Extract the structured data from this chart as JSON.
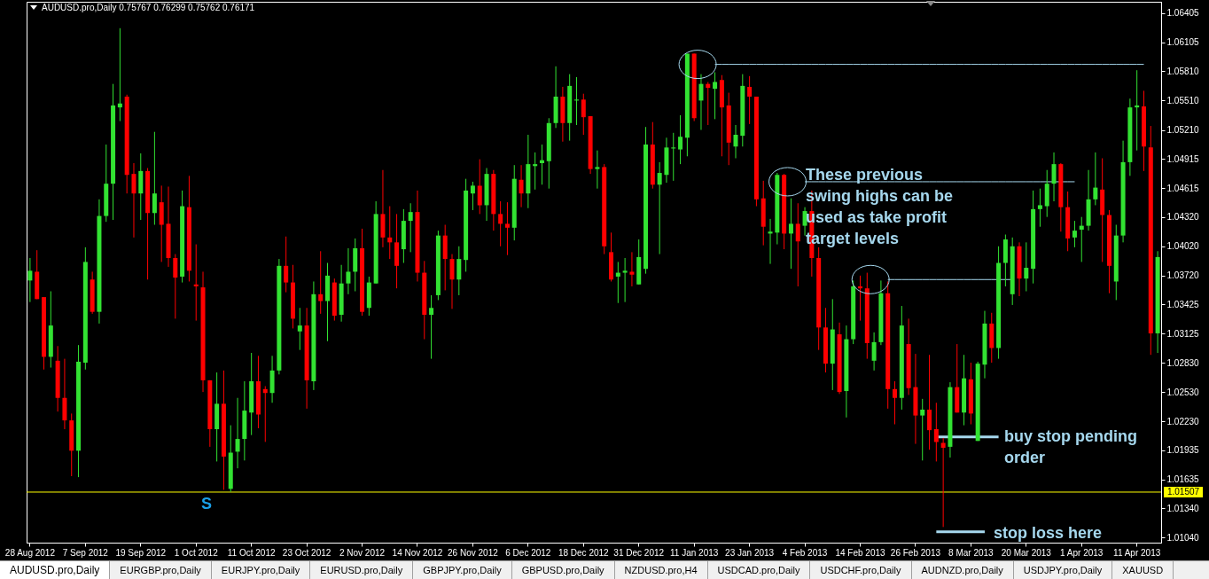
{
  "chart_data": {
    "type": "candlestick",
    "title": "AUDUSD.pro,Daily 0.75767 0.76299 0.75762 0.76171",
    "categories": [
      "28 Aug 2012",
      null,
      null,
      null,
      null,
      null,
      null,
      null,
      "7 Sep 2012",
      null,
      null,
      null,
      null,
      null,
      null,
      null,
      "19 Sep 2012",
      null,
      null,
      null,
      null,
      null,
      null,
      null,
      "1 Oct 2012",
      null,
      null,
      null,
      null,
      null,
      null,
      null,
      "11 Oct 2012",
      null,
      null,
      null,
      null,
      null,
      null,
      null,
      "23 Oct 2012",
      null,
      null,
      null,
      null,
      null,
      null,
      null,
      "2 Nov 2012",
      null,
      null,
      null,
      null,
      null,
      null,
      null,
      "14 Nov 2012",
      null,
      null,
      null,
      null,
      null,
      null,
      null,
      "26 Nov 2012",
      null,
      null,
      null,
      null,
      null,
      null,
      null,
      "6 Dec 2012",
      null,
      null,
      null,
      null,
      null,
      null,
      null,
      "18 Dec 2012",
      null,
      null,
      null,
      null,
      null,
      null,
      null,
      "31 Dec 2012",
      null,
      null,
      null,
      null,
      null,
      null,
      null,
      "11 Jan 2013",
      null,
      null,
      null,
      null,
      null,
      null,
      null,
      "23 Jan 2013",
      null,
      null,
      null,
      null,
      null,
      null,
      null,
      "4 Feb 2013",
      null,
      null,
      null,
      null,
      null,
      null,
      null,
      "14 Feb 2013",
      null,
      null,
      null,
      null,
      null,
      null,
      null,
      "26 Feb 2013",
      null,
      null,
      null,
      null,
      null,
      null,
      null,
      "8 Mar 2013",
      null,
      null,
      null,
      null,
      null,
      null,
      null,
      "20 Mar 2013",
      null,
      null,
      null,
      null,
      null,
      null,
      null,
      "1 Apr 2013",
      null,
      null,
      null,
      null,
      null,
      null,
      null,
      "11 Apr 2013",
      null,
      null,
      null
    ],
    "ohlc": [
      [
        1.0367,
        1.039,
        1.0345,
        1.0377
      ],
      [
        1.0376,
        1.0398,
        1.0348,
        1.0348
      ],
      [
        1.035,
        1.035,
        1.0276,
        1.0289
      ],
      [
        1.0289,
        1.0356,
        1.0278,
        1.0321
      ],
      [
        1.0285,
        1.03,
        1.0233,
        1.0247
      ],
      [
        1.0247,
        1.0287,
        1.0215,
        1.0224
      ],
      [
        1.0224,
        1.0231,
        1.0167,
        1.0193
      ],
      [
        1.0193,
        1.0301,
        1.0166,
        1.0284
      ],
      [
        1.0283,
        1.0401,
        1.0276,
        1.0386
      ],
      [
        1.0368,
        1.0376,
        1.0333,
        1.0335
      ],
      [
        1.0335,
        1.045,
        1.0323,
        1.0433
      ],
      [
        1.0433,
        1.0506,
        1.0427,
        1.0466
      ],
      [
        1.0466,
        1.0568,
        1.0429,
        1.0546
      ],
      [
        1.0544,
        1.0625,
        1.053,
        1.0548
      ],
      [
        1.0555,
        1.0557,
        1.0456,
        1.0475
      ],
      [
        1.0476,
        1.0487,
        1.0411,
        1.0456
      ],
      [
        1.0456,
        1.0497,
        1.0429,
        1.0479
      ],
      [
        1.0479,
        1.0482,
        1.0368,
        1.0436
      ],
      [
        1.0436,
        1.0519,
        1.0424,
        1.0456
      ],
      [
        1.0447,
        1.0464,
        1.0386,
        1.0424
      ],
      [
        1.0425,
        1.0463,
        1.0381,
        1.039
      ],
      [
        1.039,
        1.0394,
        1.0328,
        1.037
      ],
      [
        1.0371,
        1.0459,
        1.0365,
        1.0443
      ],
      [
        1.0442,
        1.0474,
        1.0366,
        1.0377
      ],
      [
        1.0363,
        1.0404,
        1.0326,
        1.0361
      ],
      [
        1.036,
        1.0376,
        1.0253,
        1.0265
      ],
      [
        1.0265,
        1.0265,
        1.0197,
        1.0215
      ],
      [
        1.0215,
        1.0273,
        1.0182,
        1.0241
      ],
      [
        1.0241,
        1.0275,
        1.0153,
        1.0187
      ],
      [
        1.0154,
        1.0219,
        1.0151,
        1.0191
      ],
      [
        1.0192,
        1.0247,
        1.0175,
        1.0205
      ],
      [
        1.0205,
        1.0264,
        1.0183,
        1.0234
      ],
      [
        1.0232,
        1.0293,
        1.0209,
        1.0264
      ],
      [
        1.0264,
        1.029,
        1.0216,
        1.023
      ],
      [
        1.0256,
        1.0259,
        1.0202,
        1.0252
      ],
      [
        1.0252,
        1.029,
        1.0242,
        1.0275
      ],
      [
        1.0275,
        1.0389,
        1.0271,
        1.0382
      ],
      [
        1.0382,
        1.0412,
        1.0355,
        1.0365
      ],
      [
        1.0365,
        1.0383,
        1.0318,
        1.0328
      ],
      [
        1.0315,
        1.0339,
        1.0296,
        1.0321
      ],
      [
        1.0321,
        1.0339,
        1.0236,
        1.0265
      ],
      [
        1.0264,
        1.0366,
        1.0255,
        1.0353
      ],
      [
        1.0353,
        1.0397,
        1.0333,
        1.0346
      ],
      [
        1.0346,
        1.0385,
        1.0305,
        1.0372
      ],
      [
        1.0365,
        1.0369,
        1.0326,
        1.0331
      ],
      [
        1.0332,
        1.0383,
        1.0325,
        1.0364
      ],
      [
        1.0364,
        1.04,
        1.0353,
        1.0376
      ],
      [
        1.0376,
        1.041,
        1.0356,
        1.04
      ],
      [
        1.04,
        1.042,
        1.0331,
        1.0335
      ],
      [
        1.0339,
        1.0371,
        1.0331,
        1.0365
      ],
      [
        1.0364,
        1.0448,
        1.0364,
        1.0435
      ],
      [
        1.0435,
        1.048,
        1.0401,
        1.0411
      ],
      [
        1.0411,
        1.0443,
        1.0389,
        1.0406
      ],
      [
        1.0406,
        1.0435,
        1.0359,
        1.0382
      ],
      [
        1.0399,
        1.044,
        1.0385,
        1.0428
      ],
      [
        1.0428,
        1.0446,
        1.0396,
        1.0437
      ],
      [
        1.0437,
        1.0459,
        1.0366,
        1.0375
      ],
      [
        1.0375,
        1.0387,
        1.0307,
        1.0332
      ],
      [
        1.0332,
        1.0352,
        1.0287,
        1.0339
      ],
      [
        1.0352,
        1.0418,
        1.0347,
        1.0413
      ],
      [
        1.0413,
        1.0424,
        1.0357,
        1.0389
      ],
      [
        1.0389,
        1.0394,
        1.0338,
        1.0368
      ],
      [
        1.0368,
        1.0402,
        1.0352,
        1.0389
      ],
      [
        1.0388,
        1.0471,
        1.0376,
        1.0459
      ],
      [
        1.0456,
        1.0468,
        1.0439,
        1.0464
      ],
      [
        1.0464,
        1.0491,
        1.0435,
        1.0444
      ],
      [
        1.0444,
        1.0482,
        1.0428,
        1.0476
      ],
      [
        1.0476,
        1.048,
        1.0418,
        1.0435
      ],
      [
        1.0435,
        1.0448,
        1.0402,
        1.0425
      ],
      [
        1.0425,
        1.0447,
        1.0393,
        1.0421
      ],
      [
        1.0421,
        1.0485,
        1.0408,
        1.0471
      ],
      [
        1.047,
        1.0485,
        1.0442,
        1.0456
      ],
      [
        1.0456,
        1.0516,
        1.0441,
        1.0486
      ],
      [
        1.0484,
        1.0498,
        1.046,
        1.0486
      ],
      [
        1.0487,
        1.0506,
        1.0465,
        1.049
      ],
      [
        1.0489,
        1.0533,
        1.0461,
        1.0528
      ],
      [
        1.0528,
        1.0586,
        1.0523,
        1.0555
      ],
      [
        1.0555,
        1.0565,
        1.0509,
        1.0528
      ],
      [
        1.0528,
        1.0578,
        1.051,
        1.0566
      ],
      [
        1.0551,
        1.0575,
        1.0526,
        1.0552
      ],
      [
        1.0552,
        1.0558,
        1.0516,
        1.0534
      ],
      [
        1.0535,
        1.0535,
        1.0476,
        1.0481
      ],
      [
        1.0481,
        1.05,
        1.0461,
        1.0483
      ],
      [
        1.0483,
        1.0486,
        1.0394,
        1.0402
      ],
      [
        1.0396,
        1.0416,
        1.0366,
        1.0368
      ],
      [
        1.0371,
        1.0386,
        1.0344,
        1.0375
      ],
      [
        1.0375,
        1.039,
        1.0345,
        1.0377
      ],
      [
        1.0376,
        1.0396,
        1.0361,
        1.0373
      ],
      [
        1.0363,
        1.0409,
        1.0363,
        1.0391
      ],
      [
        1.0379,
        1.0524,
        1.0374,
        1.0506
      ],
      [
        1.0506,
        1.0529,
        1.0461,
        1.0465
      ],
      [
        1.0465,
        1.0488,
        1.0394,
        1.0477
      ],
      [
        1.0475,
        1.0513,
        1.0467,
        1.0503
      ],
      [
        1.0502,
        1.0518,
        1.0469,
        1.0503
      ],
      [
        1.0501,
        1.0536,
        1.0486,
        1.0514
      ],
      [
        1.0513,
        1.0599,
        1.0494,
        1.0599
      ],
      [
        1.0599,
        1.0599,
        1.053,
        1.0533
      ],
      [
        1.0551,
        1.0578,
        1.0521,
        1.0568
      ],
      [
        1.0568,
        1.057,
        1.0526,
        1.0564
      ],
      [
        1.0563,
        1.058,
        1.0532,
        1.057
      ],
      [
        1.0572,
        1.0577,
        1.0494,
        1.0544
      ],
      [
        1.0546,
        1.0559,
        1.0485,
        1.0508
      ],
      [
        1.0504,
        1.0526,
        1.0492,
        1.0516
      ],
      [
        1.0515,
        1.0578,
        1.0504,
        1.0566
      ],
      [
        1.0565,
        1.0576,
        1.0527,
        1.0555
      ],
      [
        1.0555,
        1.0555,
        1.0443,
        1.045
      ],
      [
        1.0451,
        1.0469,
        1.0403,
        1.0422
      ],
      [
        1.0415,
        1.043,
        1.0384,
        1.0417
      ],
      [
        1.0416,
        1.0477,
        1.0404,
        1.0475
      ],
      [
        1.0475,
        1.0476,
        1.0399,
        1.0415
      ],
      [
        1.0415,
        1.0451,
        1.0379,
        1.0425
      ],
      [
        1.0425,
        1.0446,
        1.0361,
        1.0407
      ],
      [
        1.0423,
        1.0442,
        1.0413,
        1.0438
      ],
      [
        1.0438,
        1.0459,
        1.0371,
        1.039
      ],
      [
        1.039,
        1.0401,
        1.0296,
        1.0319
      ],
      [
        1.0319,
        1.0339,
        1.0273,
        1.0282
      ],
      [
        1.0282,
        1.0348,
        1.0255,
        1.0317
      ],
      [
        1.0312,
        1.0324,
        1.0251,
        1.0253
      ],
      [
        1.0254,
        1.0321,
        1.0227,
        1.0307
      ],
      [
        1.0307,
        1.0367,
        1.0302,
        1.0361
      ],
      [
        1.0361,
        1.0372,
        1.0326,
        1.0359
      ],
      [
        1.0359,
        1.0375,
        1.0287,
        1.0303
      ],
      [
        1.0285,
        1.0314,
        1.0275,
        1.0304
      ],
      [
        1.0304,
        1.0367,
        1.0301,
        1.0354
      ],
      [
        1.0354,
        1.0366,
        1.0236,
        1.0256
      ],
      [
        1.0256,
        1.0264,
        1.022,
        1.0247
      ],
      [
        1.0247,
        1.0341,
        1.0235,
        1.0321
      ],
      [
        1.0302,
        1.0328,
        1.025,
        1.0257
      ],
      [
        1.0258,
        1.0292,
        1.02,
        1.0229
      ],
      [
        1.0229,
        1.0246,
        1.0183,
        1.0235
      ],
      [
        1.0235,
        1.0291,
        1.0194,
        1.0214
      ],
      [
        1.0215,
        1.0242,
        1.0182,
        1.0202
      ],
      [
        1.0201,
        1.0206,
        1.0115,
        1.0196
      ],
      [
        1.0197,
        1.0263,
        1.0186,
        1.0258
      ],
      [
        1.0258,
        1.0302,
        1.0232,
        1.0232
      ],
      [
        1.0232,
        1.0291,
        1.0219,
        1.0267
      ],
      [
        1.0266,
        1.0283,
        1.022,
        1.0231
      ],
      [
        1.0203,
        1.0284,
        1.0203,
        1.0282
      ],
      [
        1.0281,
        1.0336,
        1.0267,
        1.0323
      ],
      [
        1.0323,
        1.0334,
        1.0283,
        1.0298
      ],
      [
        1.0298,
        1.0402,
        1.0287,
        1.0385
      ],
      [
        1.0385,
        1.0414,
        1.0361,
        1.0409
      ],
      [
        1.0353,
        1.0411,
        1.0342,
        1.0402
      ],
      [
        1.0402,
        1.0406,
        1.0351,
        1.0369
      ],
      [
        1.0369,
        1.0406,
        1.0356,
        1.038
      ],
      [
        1.0379,
        1.0459,
        1.0364,
        1.044
      ],
      [
        1.044,
        1.0461,
        1.0422,
        1.0444
      ],
      [
        1.0443,
        1.048,
        1.0432,
        1.0466
      ],
      [
        1.0466,
        1.0498,
        1.0448,
        1.0486
      ],
      [
        1.0486,
        1.0487,
        1.0417,
        1.0442
      ],
      [
        1.0442,
        1.0458,
        1.0397,
        1.041
      ],
      [
        1.0411,
        1.0428,
        1.0401,
        1.0418
      ],
      [
        1.0419,
        1.0432,
        1.0386,
        1.0423
      ],
      [
        1.0423,
        1.048,
        1.0418,
        1.045
      ],
      [
        1.045,
        1.0498,
        1.0444,
        1.0462
      ],
      [
        1.046,
        1.0492,
        1.0386,
        1.0434
      ],
      [
        1.0434,
        1.0439,
        1.0354,
        1.0382
      ],
      [
        1.0366,
        1.0424,
        1.0347,
        1.0413
      ],
      [
        1.0413,
        1.051,
        1.0406,
        1.0488
      ],
      [
        1.0488,
        1.0553,
        1.0474,
        1.0544
      ],
      [
        1.0544,
        1.0582,
        1.05,
        1.0546
      ],
      [
        1.0545,
        1.0561,
        1.0479,
        1.0504
      ],
      [
        1.0503,
        1.0525,
        1.0291,
        1.0313
      ],
      [
        1.0313,
        1.0397,
        1.0293,
        1.0391
      ]
    ],
    "colors": [
      "#32e232",
      "#ff0000",
      "#ff0000",
      "#32e232",
      "#ff0000",
      "#ff0000",
      "#ff0000",
      "#32e232",
      "#32e232",
      "#ff0000",
      "#32e232",
      "#32e232",
      "#32e232",
      "#32e232",
      "#ff0000",
      "#ff0000",
      "#32e232",
      "#ff0000",
      "#32e232",
      "#ff0000",
      "#ff0000",
      "#ff0000",
      "#32e232",
      "#ff0000",
      "#ff0000",
      "#ff0000",
      "#ff0000",
      "#32e232",
      "#ff0000",
      "#32e232",
      "#32e232",
      "#32e232",
      "#32e232",
      "#ff0000",
      "#ff0000",
      "#32e232",
      "#32e232",
      "#ff0000",
      "#ff0000",
      "#32e232",
      "#ff0000",
      "#32e232",
      "#ff0000",
      "#32e232",
      "#ff0000",
      "#32e232",
      "#32e232",
      "#32e232",
      "#ff0000",
      "#32e232",
      "#32e232",
      "#ff0000",
      "#ff0000",
      "#ff0000",
      "#32e232",
      "#32e232",
      "#ff0000",
      "#ff0000",
      "#32e232",
      "#32e232",
      "#ff0000",
      "#ff0000",
      "#32e232",
      "#32e232",
      "#32e232",
      "#ff0000",
      "#32e232",
      "#ff0000",
      "#ff0000",
      "#ff0000",
      "#32e232",
      "#ff0000",
      "#32e232",
      "#32e232",
      "#32e232",
      "#32e232",
      "#32e232",
      "#ff0000",
      "#32e232",
      "#32e232",
      "#ff0000",
      "#ff0000",
      "#32e232",
      "#ff0000",
      "#ff0000",
      "#32e232",
      "#32e232",
      "#ff0000",
      "#32e232",
      "#32e232",
      "#ff0000",
      "#32e232",
      "#32e232",
      "#32e232",
      "#32e232",
      "#32e232",
      "#ff0000",
      "#32e232",
      "#ff0000",
      "#32e232",
      "#ff0000",
      "#ff0000",
      "#32e232",
      "#32e232",
      "#ff0000",
      "#ff0000",
      "#ff0000",
      "#32e232",
      "#32e232",
      "#ff0000",
      "#32e232",
      "#ff0000",
      "#32e232",
      "#ff0000",
      "#ff0000",
      "#ff0000",
      "#32e232",
      "#ff0000",
      "#32e232",
      "#32e232",
      "#ff0000",
      "#ff0000",
      "#32e232",
      "#32e232",
      "#ff0000",
      "#ff0000",
      "#32e232",
      "#ff0000",
      "#ff0000",
      "#32e232",
      "#ff0000",
      "#ff0000",
      "#ff0000",
      "#32e232",
      "#ff0000",
      "#32e232",
      "#ff0000",
      "#32e232",
      "#32e232",
      "#ff0000",
      "#32e232",
      "#32e232",
      "#32e232",
      "#ff0000",
      "#32e232",
      "#32e232",
      "#32e232",
      "#32e232",
      "#32e232",
      "#ff0000",
      "#ff0000",
      "#32e232",
      "#32e232",
      "#32e232",
      "#32e232",
      "#ff0000",
      "#ff0000",
      "#32e232",
      "#32e232",
      "#32e232",
      "#32e232",
      "#ff0000",
      "#ff0000",
      "#32e232"
    ],
    "series": [
      {
        "type": "line",
        "color": "#a6d8ee",
        "values": [
          null,
          null,
          null,
          null,
          null,
          null,
          null,
          null,
          null,
          null,
          null,
          null,
          null,
          null,
          null,
          null,
          null,
          null,
          null,
          null,
          null,
          null,
          null,
          null,
          null,
          null,
          null,
          null,
          null,
          null,
          null,
          null,
          null,
          null,
          null,
          null,
          null,
          null,
          null,
          null,
          null,
          null,
          null,
          null,
          null,
          null,
          null,
          null,
          null,
          null,
          null,
          null,
          null,
          null,
          null,
          null,
          null,
          null,
          null,
          null,
          null,
          null,
          null,
          null,
          null,
          null,
          null,
          null,
          null,
          null,
          null,
          null,
          null,
          null,
          null,
          null,
          null,
          null,
          null,
          null,
          null,
          null,
          null,
          null,
          null,
          null,
          null,
          null,
          null,
          null,
          null,
          null,
          null,
          null,
          null,
          null,
          null,
          null,
          null,
          1.0588,
          1.0588,
          1.0588,
          1.0588,
          1.0588,
          1.0588,
          1.0588,
          1.0588,
          1.0588,
          1.0588,
          1.0588,
          1.0588,
          1.0588,
          1.0588,
          1.0588,
          1.0588,
          1.0588,
          1.0588,
          1.0588,
          1.0588,
          1.0588,
          1.0588,
          1.0588,
          1.0588,
          1.0588,
          1.0588,
          1.0588,
          1.0588,
          1.0588,
          1.0588,
          1.0588,
          1.0588,
          1.0588,
          1.0588,
          1.0588,
          1.0588,
          1.0588,
          1.0588,
          1.0588,
          1.0588,
          1.0588,
          1.0588,
          1.0588,
          1.0588,
          1.0588,
          1.0588,
          1.0588,
          1.0588,
          1.0588,
          1.0588,
          1.0588,
          1.0588,
          1.0588,
          1.0588,
          1.0588,
          1.0588,
          1.0588,
          1.0588,
          1.0588,
          1.0588,
          1.0588,
          1.0588,
          1.0588,
          null,
          null
        ]
      },
      {
        "type": "line",
        "color": "#a6d8ee",
        "values": [
          null,
          null,
          null,
          null,
          null,
          null,
          null,
          null,
          null,
          null,
          null,
          null,
          null,
          null,
          null,
          null,
          null,
          null,
          null,
          null,
          null,
          null,
          null,
          null,
          null,
          null,
          null,
          null,
          null,
          null,
          null,
          null,
          null,
          null,
          null,
          null,
          null,
          null,
          null,
          null,
          null,
          null,
          null,
          null,
          null,
          null,
          null,
          null,
          null,
          null,
          null,
          null,
          null,
          null,
          null,
          null,
          null,
          null,
          null,
          null,
          null,
          null,
          null,
          null,
          null,
          null,
          null,
          null,
          null,
          null,
          null,
          null,
          null,
          null,
          null,
          null,
          null,
          null,
          null,
          null,
          null,
          null,
          null,
          null,
          null,
          null,
          null,
          null,
          null,
          null,
          null,
          null,
          null,
          null,
          null,
          null,
          null,
          null,
          null,
          null,
          null,
          null,
          null,
          null,
          null,
          null,
          null,
          null,
          null,
          null,
          null,
          null,
          1.0468,
          1.0468,
          1.0468,
          1.0468,
          1.0468,
          1.0468,
          1.0468,
          1.0468,
          1.0468,
          1.0468,
          1.0468,
          1.0468,
          1.0468,
          1.0468,
          1.0468,
          1.0468,
          1.0468,
          1.0468,
          1.0468,
          1.0468,
          1.0468,
          1.0468,
          1.0468,
          1.0468,
          1.0468,
          1.0468,
          1.0468,
          1.0468,
          1.0468,
          1.0468,
          1.0468,
          1.0468,
          1.0468,
          1.0468,
          1.0468,
          1.0468,
          1.0468,
          1.0468,
          1.0468,
          1.0468,
          null,
          null,
          null,
          null,
          null,
          null,
          null,
          null,
          null,
          null,
          null,
          null
        ]
      },
      {
        "type": "line",
        "color": "#a6d8ee",
        "values": [
          null,
          null,
          null,
          null,
          null,
          null,
          null,
          null,
          null,
          null,
          null,
          null,
          null,
          null,
          null,
          null,
          null,
          null,
          null,
          null,
          null,
          null,
          null,
          null,
          null,
          null,
          null,
          null,
          null,
          null,
          null,
          null,
          null,
          null,
          null,
          null,
          null,
          null,
          null,
          null,
          null,
          null,
          null,
          null,
          null,
          null,
          null,
          null,
          null,
          null,
          null,
          null,
          null,
          null,
          null,
          null,
          null,
          null,
          null,
          null,
          null,
          null,
          null,
          null,
          null,
          null,
          null,
          null,
          null,
          null,
          null,
          null,
          null,
          null,
          null,
          null,
          null,
          null,
          null,
          null,
          null,
          null,
          null,
          null,
          null,
          null,
          null,
          null,
          null,
          null,
          null,
          null,
          null,
          null,
          null,
          null,
          null,
          null,
          null,
          null,
          null,
          null,
          null,
          null,
          null,
          null,
          null,
          null,
          null,
          null,
          null,
          null,
          null,
          null,
          null,
          null,
          null,
          null,
          null,
          null,
          null,
          null,
          null,
          null,
          1.0368,
          1.0368,
          1.0368,
          1.0368,
          1.0368,
          1.0368,
          1.0368,
          1.0368,
          1.0368,
          1.0368,
          1.0368,
          1.0368,
          1.0368,
          1.0368,
          1.0368,
          1.0368,
          1.0368,
          1.0368,
          1.0368,
          null,
          null,
          null,
          null,
          null,
          null,
          null,
          null,
          null,
          null,
          null,
          null,
          null,
          null,
          null,
          null,
          null,
          null,
          null,
          null,
          null
        ]
      },
      {
        "type": "line",
        "color": "#a6d8ee",
        "values": [
          null,
          null,
          null,
          null,
          null,
          null,
          null,
          null,
          null,
          null,
          null,
          null,
          null,
          null,
          null,
          null,
          null,
          null,
          null,
          null,
          null,
          null,
          null,
          null,
          null,
          null,
          null,
          null,
          null,
          null,
          null,
          null,
          null,
          null,
          null,
          null,
          null,
          null,
          null,
          null,
          null,
          null,
          null,
          null,
          null,
          null,
          null,
          null,
          null,
          null,
          null,
          null,
          null,
          null,
          null,
          null,
          null,
          null,
          null,
          null,
          null,
          null,
          null,
          null,
          null,
          null,
          null,
          null,
          null,
          null,
          null,
          null,
          null,
          null,
          null,
          null,
          null,
          null,
          null,
          null,
          null,
          null,
          null,
          null,
          null,
          null,
          null,
          null,
          null,
          null,
          null,
          null,
          null,
          null,
          null,
          null,
          null,
          null,
          null,
          null,
          null,
          null,
          null,
          null,
          null,
          null,
          null,
          null,
          null,
          null,
          null,
          null,
          null,
          null,
          null,
          null,
          null,
          null,
          null,
          null,
          null,
          null,
          null,
          null,
          null,
          null,
          null,
          null,
          null,
          null,
          null,
          1.0207,
          1.0207,
          1.0207,
          1.0207,
          1.0207,
          1.0207,
          1.0207,
          1.0207,
          1.0207,
          1.0207,
          null,
          null,
          null,
          null,
          null,
          null,
          null,
          null,
          null,
          null,
          null,
          null,
          null,
          null,
          null,
          null,
          null,
          null,
          null,
          null,
          null,
          null,
          null
        ]
      },
      {
        "type": "line",
        "color": "#a6d8ee",
        "values": [
          null,
          null,
          null,
          null,
          null,
          null,
          null,
          null,
          null,
          null,
          null,
          null,
          null,
          null,
          null,
          null,
          null,
          null,
          null,
          null,
          null,
          null,
          null,
          null,
          null,
          null,
          null,
          null,
          null,
          null,
          null,
          null,
          null,
          null,
          null,
          null,
          null,
          null,
          null,
          null,
          null,
          null,
          null,
          null,
          null,
          null,
          null,
          null,
          null,
          null,
          null,
          null,
          null,
          null,
          null,
          null,
          null,
          null,
          null,
          null,
          null,
          null,
          null,
          null,
          null,
          null,
          null,
          null,
          null,
          null,
          null,
          null,
          null,
          null,
          null,
          null,
          null,
          null,
          null,
          null,
          null,
          null,
          null,
          null,
          null,
          null,
          null,
          null,
          null,
          null,
          null,
          null,
          null,
          null,
          null,
          null,
          null,
          null,
          null,
          null,
          null,
          null,
          null,
          null,
          null,
          null,
          null,
          null,
          null,
          null,
          null,
          null,
          null,
          null,
          null,
          null,
          null,
          null,
          null,
          null,
          null,
          null,
          null,
          null,
          null,
          null,
          null,
          null,
          null,
          null,
          null,
          1.011,
          1.011,
          1.011,
          1.011,
          1.011,
          1.011,
          1.011,
          1.011,
          null,
          null,
          null,
          null,
          null,
          null,
          null,
          null,
          null,
          null,
          null,
          null,
          null,
          null,
          null,
          null,
          null,
          null,
          null,
          null,
          null,
          null,
          null,
          null,
          null
        ]
      }
    ],
    "ylim": [
      1.0099,
      1.0652
    ],
    "yticks": [
      1.06405,
      1.06105,
      {
        "value": 1.0581,
        "label": "1.05810"
      },
      {
        "value": 1.0551,
        "label": "1.05510"
      },
      {
        "value": 1.0521,
        "label": "1.05210"
      },
      1.04915,
      1.04615,
      {
        "value": 1.0432,
        "label": "1.04320"
      },
      {
        "value": 1.0402,
        "label": "1.04020"
      },
      {
        "value": 1.0372,
        "label": "1.03720"
      },
      1.03425,
      1.03125,
      {
        "value": 1.0283,
        "label": "1.02830"
      },
      {
        "value": 1.0253,
        "label": "1.02530"
      },
      {
        "value": 1.0223,
        "label": "1.02230"
      },
      1.01935,
      1.01635,
      {
        "value": 1.0134,
        "label": "1.01340"
      },
      {
        "value": 1.0104,
        "label": "1.01040"
      }
    ],
    "ref_lines": [
      {
        "axis": "y",
        "value": 1.01507,
        "label": "1.01507",
        "color": "#ffff00"
      }
    ],
    "annotations": [
      "These previous swing highs can be used as take profit target levels",
      "buy stop pending order",
      "stop loss here",
      "S",
      "AUDUSD.pro,Daily",
      "EURGBP.pro,Daily",
      "EURJPY.pro,Daily",
      "EURUSD.pro,Daily",
      "GBPJPY.pro,Daily",
      "GBPUSD.pro,Daily",
      "NZDUSD.pro,H4",
      "USDCAD.pro,Daily",
      "USDCHF.pro,Daily",
      "AUDNZD.pro,Daily",
      "USDJPY.pro,Daily",
      "XAUUSD"
    ]
  }
}
